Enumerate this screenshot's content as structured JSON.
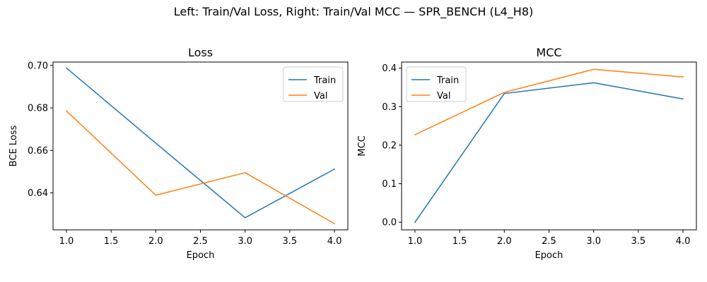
{
  "figure": {
    "suptitle": "Left: Train/Val Loss, Right: Train/Val MCC — SPR_BENCH (L4_H8)"
  },
  "chart_data": [
    {
      "type": "line",
      "title": "Loss",
      "xlabel": "Epoch",
      "ylabel": "BCE Loss",
      "x": [
        1,
        2,
        3,
        4
      ],
      "xlim": [
        0.85,
        4.15
      ],
      "ylim": [
        0.6226,
        0.7016
      ],
      "xticks": [
        1.0,
        1.5,
        2.0,
        2.5,
        3.0,
        3.5,
        4.0
      ],
      "xtick_labels": [
        "1.0",
        "1.5",
        "2.0",
        "2.5",
        "3.0",
        "3.5",
        "4.0"
      ],
      "yticks": [
        0.64,
        0.66,
        0.68,
        0.7
      ],
      "ytick_labels": [
        "0.64",
        "0.66",
        "0.68",
        "0.70"
      ],
      "series": [
        {
          "name": "Train",
          "color": "#1f77b4",
          "values": [
            0.6988,
            0.6634,
            0.6283,
            0.6512
          ]
        },
        {
          "name": "Val",
          "color": "#ff7f0e",
          "values": [
            0.6786,
            0.6389,
            0.6495,
            0.6255
          ]
        }
      ],
      "legend": "top-right",
      "grid": false
    },
    {
      "type": "line",
      "title": "MCC",
      "xlabel": "Epoch",
      "ylabel": "MCC",
      "x": [
        1,
        2,
        3,
        4
      ],
      "xlim": [
        0.85,
        4.15
      ],
      "ylim": [
        -0.0198,
        0.4158
      ],
      "xticks": [
        1.0,
        1.5,
        2.0,
        2.5,
        3.0,
        3.5,
        4.0
      ],
      "xtick_labels": [
        "1.0",
        "1.5",
        "2.0",
        "2.5",
        "3.0",
        "3.5",
        "4.0"
      ],
      "yticks": [
        0.0,
        0.1,
        0.2,
        0.3,
        0.4
      ],
      "ytick_labels": [
        "0.0",
        "0.1",
        "0.2",
        "0.3",
        "0.4"
      ],
      "series": [
        {
          "name": "Train",
          "color": "#1f77b4",
          "values": [
            0.0,
            0.334,
            0.362,
            0.32
          ]
        },
        {
          "name": "Val",
          "color": "#ff7f0e",
          "values": [
            0.227,
            0.337,
            0.397,
            0.377
          ]
        }
      ],
      "legend": "top-left",
      "grid": false
    }
  ]
}
